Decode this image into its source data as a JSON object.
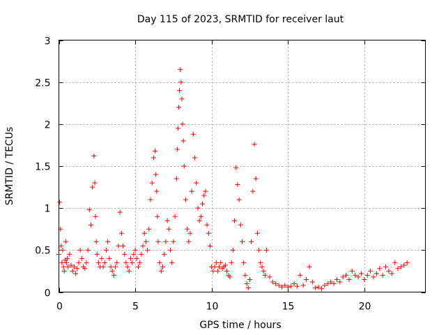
{
  "chart_data": {
    "type": "scatter",
    "title": "Day 115 of 2023, SRMTID for receiver laut",
    "xlabel": "GPS time / hours",
    "ylabel": "SRMTID / TECUs",
    "xlim": [
      0,
      24
    ],
    "ylim": [
      0,
      3
    ],
    "xticks": [
      0,
      5,
      10,
      15,
      20
    ],
    "yticks": [
      0,
      0.5,
      1,
      1.5,
      2,
      2.5,
      3
    ],
    "xtick_labels": [
      "0",
      "5",
      "10",
      "15",
      "20"
    ],
    "ytick_labels": [
      "0",
      "0.5",
      "1",
      "1.5",
      "2",
      "2.5",
      "3"
    ],
    "grid": true,
    "marker": "+",
    "color": "#ff0000",
    "series": [
      {
        "name": "SRMTID",
        "x": [
          0.0,
          0.05,
          0.1,
          0.15,
          0.2,
          0.25,
          0.3,
          0.35,
          0.4,
          0.45,
          0.5,
          0.55,
          0.6,
          0.7,
          0.8,
          0.9,
          1.0,
          1.1,
          1.2,
          1.3,
          1.4,
          1.5,
          1.6,
          1.7,
          1.8,
          1.9,
          2.0,
          2.1,
          2.2,
          2.3,
          2.35,
          2.4,
          2.45,
          2.5,
          2.6,
          2.7,
          2.8,
          2.9,
          3.0,
          3.1,
          3.2,
          3.3,
          3.4,
          3.5,
          3.6,
          3.7,
          3.8,
          3.9,
          4.0,
          4.1,
          4.2,
          4.3,
          4.4,
          4.5,
          4.6,
          4.7,
          4.8,
          4.9,
          5.0,
          5.1,
          5.2,
          5.3,
          5.4,
          5.5,
          5.6,
          5.7,
          5.8,
          5.9,
          6.0,
          6.1,
          6.2,
          6.3,
          6.35,
          6.4,
          6.45,
          6.5,
          6.6,
          6.7,
          6.8,
          6.9,
          7.0,
          7.1,
          7.2,
          7.3,
          7.4,
          7.5,
          7.6,
          7.7,
          7.75,
          7.8,
          7.85,
          7.9,
          7.95,
          8.0,
          8.05,
          8.1,
          8.15,
          8.2,
          8.3,
          8.4,
          8.5,
          8.6,
          8.7,
          8.8,
          8.9,
          9.0,
          9.1,
          9.2,
          9.3,
          9.4,
          9.5,
          9.6,
          9.7,
          9.8,
          9.9,
          10.0,
          10.1,
          10.2,
          10.3,
          10.4,
          10.5,
          10.6,
          10.7,
          10.8,
          10.9,
          11.0,
          11.1,
          11.2,
          11.3,
          11.4,
          11.5,
          11.6,
          11.7,
          11.8,
          11.9,
          12.0,
          12.1,
          12.2,
          12.3,
          12.4,
          12.5,
          12.6,
          12.7,
          12.8,
          12.9,
          13.0,
          13.1,
          13.2,
          13.3,
          13.4,
          13.5,
          13.6,
          13.8,
          14.0,
          14.2,
          14.4,
          14.6,
          14.8,
          15.0,
          15.2,
          15.4,
          15.6,
          15.8,
          16.0,
          16.2,
          16.4,
          16.6,
          16.8,
          17.0,
          17.2,
          17.4,
          17.6,
          17.8,
          18.0,
          18.2,
          18.4,
          18.6,
          18.8,
          19.0,
          19.2,
          19.4,
          19.6,
          19.8,
          20.0,
          20.2,
          20.4,
          20.6,
          20.8,
          21.0,
          21.2,
          21.4,
          21.6,
          21.8,
          22.0,
          22.2,
          22.4,
          22.6,
          22.8
        ],
        "y": [
          0.45,
          1.07,
          0.75,
          0.55,
          0.35,
          0.5,
          0.3,
          0.25,
          0.38,
          0.6,
          0.35,
          0.4,
          0.3,
          0.45,
          0.32,
          0.25,
          0.3,
          0.22,
          0.28,
          0.35,
          0.5,
          0.4,
          0.3,
          0.28,
          0.35,
          0.5,
          0.98,
          0.8,
          1.25,
          1.62,
          1.3,
          0.9,
          0.6,
          0.45,
          0.35,
          0.3,
          0.4,
          0.3,
          0.35,
          0.5,
          0.6,
          0.4,
          0.3,
          0.25,
          0.2,
          0.3,
          0.35,
          0.55,
          0.95,
          0.7,
          0.55,
          0.45,
          0.35,
          0.3,
          0.25,
          0.4,
          0.35,
          0.45,
          0.5,
          0.4,
          0.3,
          0.35,
          0.45,
          0.55,
          0.7,
          0.6,
          0.5,
          0.75,
          1.1,
          1.3,
          1.6,
          1.68,
          1.4,
          1.2,
          0.9,
          0.6,
          0.35,
          0.25,
          0.3,
          0.45,
          0.6,
          0.85,
          0.75,
          0.5,
          0.35,
          0.6,
          0.9,
          1.35,
          1.7,
          1.95,
          2.2,
          2.4,
          2.65,
          2.5,
          2.3,
          2.0,
          1.8,
          1.5,
          1.1,
          0.75,
          0.6,
          0.7,
          1.2,
          1.88,
          1.6,
          1.3,
          1.0,
          0.85,
          0.9,
          1.05,
          1.15,
          1.2,
          0.8,
          0.7,
          0.55,
          0.3,
          0.25,
          0.3,
          0.35,
          0.25,
          0.3,
          0.35,
          0.28,
          0.3,
          0.32,
          0.25,
          0.2,
          0.18,
          0.35,
          0.5,
          0.85,
          1.48,
          1.28,
          1.1,
          0.8,
          0.6,
          0.35,
          0.2,
          0.1,
          0.05,
          0.15,
          0.6,
          1.2,
          1.76,
          1.35,
          0.7,
          0.5,
          0.35,
          0.3,
          0.25,
          0.2,
          0.5,
          0.18,
          0.12,
          0.1,
          0.08,
          0.06,
          0.08,
          0.06,
          0.07,
          0.1,
          0.07,
          0.2,
          0.08,
          0.15,
          0.3,
          0.12,
          0.05,
          0.06,
          0.04,
          0.08,
          0.1,
          0.12,
          0.1,
          0.15,
          0.12,
          0.18,
          0.2,
          0.15,
          0.25,
          0.2,
          0.18,
          0.22,
          0.15,
          0.2,
          0.25,
          0.18,
          0.22,
          0.28,
          0.2,
          0.3,
          0.25,
          0.22,
          0.35,
          0.28,
          0.3,
          0.32,
          0.35
        ]
      }
    ]
  }
}
